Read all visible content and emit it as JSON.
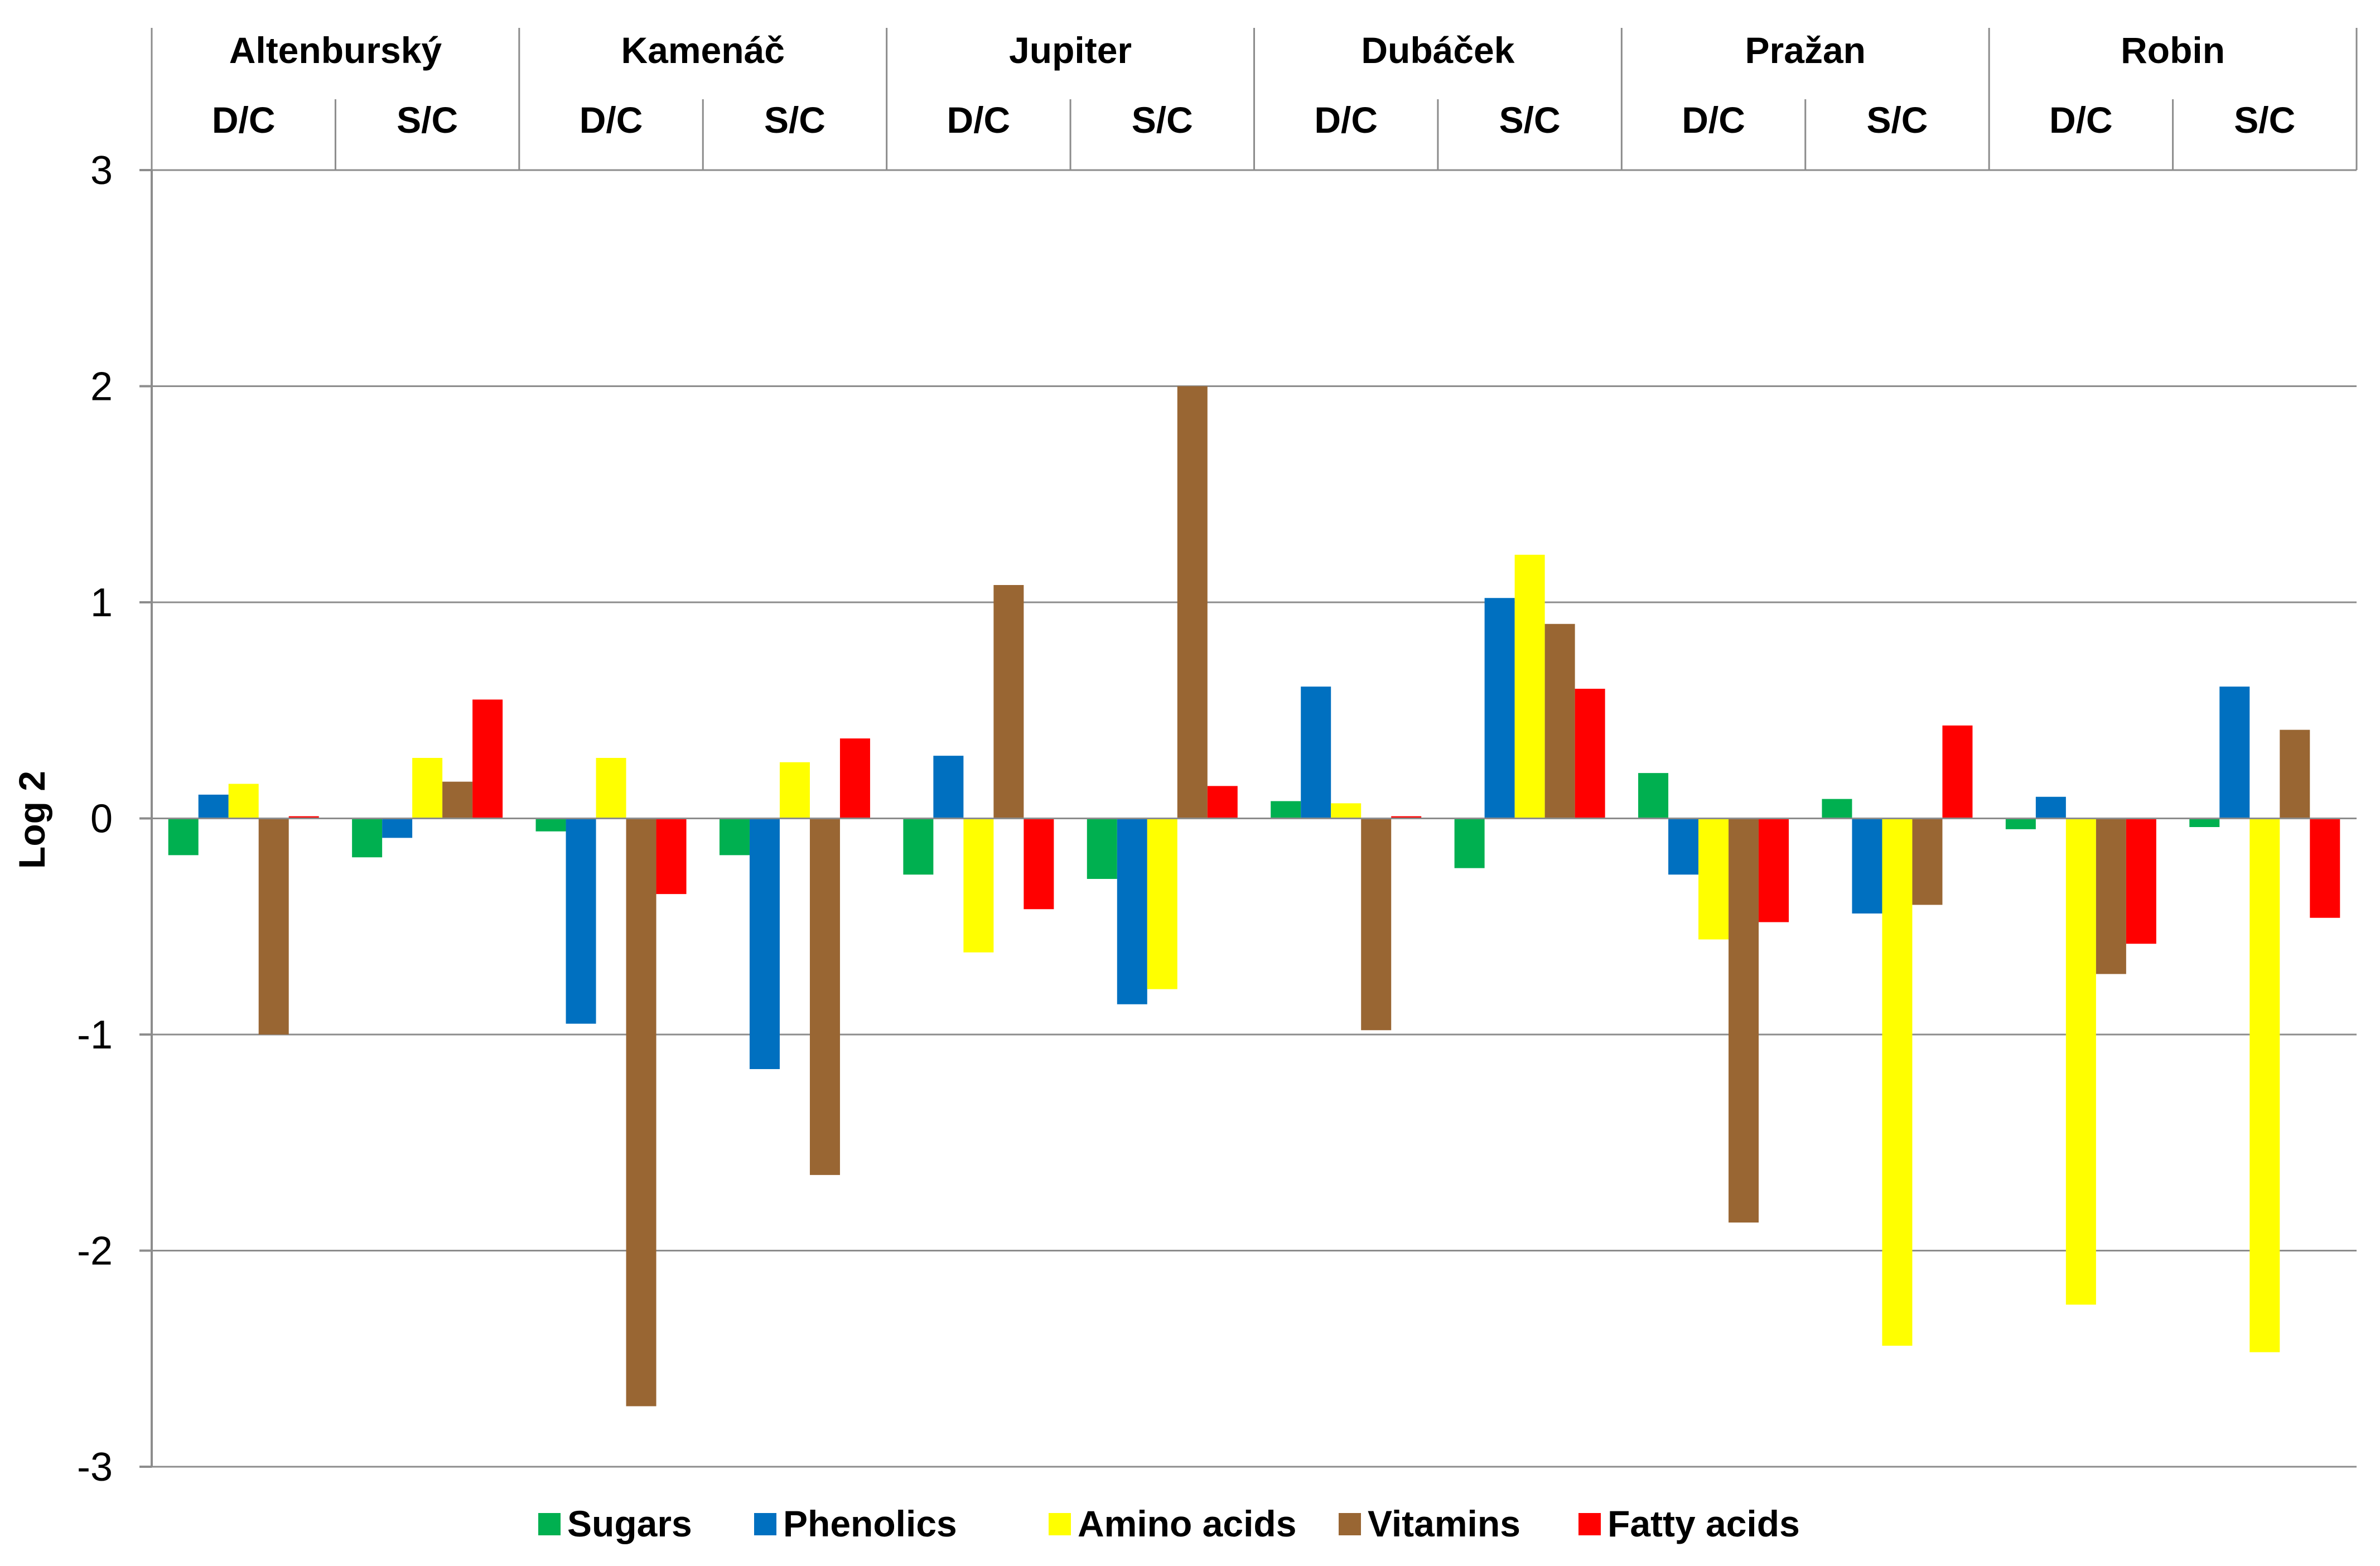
{
  "chart_data": {
    "type": "bar",
    "ylabel": "Log 2",
    "ylim": [
      -3,
      3
    ],
    "yticks": [
      "3",
      "2",
      "1",
      "0",
      "-1",
      "-2",
      "-3"
    ],
    "cultivars": [
      "Altenburský",
      "Kamenáč",
      "Jupiter",
      "Dubáček",
      "Pražan",
      "Robin"
    ],
    "conditions": [
      "D/C",
      "S/C"
    ],
    "series": [
      {
        "name": "Sugars",
        "color": "#00b050",
        "values": [
          -0.17,
          -0.18,
          -0.06,
          -0.17,
          -0.26,
          -0.28,
          0.08,
          -0.23,
          0.21,
          0.09,
          -0.05,
          -0.04
        ]
      },
      {
        "name": "Phenolics",
        "color": "#0070c0",
        "values": [
          0.11,
          -0.09,
          -0.95,
          -1.16,
          0.29,
          -0.86,
          0.61,
          1.02,
          -0.26,
          -0.44,
          0.1,
          0.61
        ]
      },
      {
        "name": "Amino acids",
        "color": "#ffff00",
        "values": [
          0.16,
          0.28,
          0.28,
          0.26,
          -0.62,
          -0.79,
          0.07,
          1.22,
          -0.56,
          -2.44,
          -2.25,
          -2.47
        ]
      },
      {
        "name": "Vitamins",
        "color": "#996633",
        "values": [
          -1.0,
          0.17,
          -2.72,
          -1.65,
          1.08,
          2.0,
          -0.98,
          0.9,
          -1.87,
          -0.4,
          -0.72,
          0.41
        ]
      },
      {
        "name": "Fatty acids",
        "color": "#ff0000",
        "values": [
          0.01,
          0.55,
          -0.35,
          0.37,
          -0.42,
          0.15,
          0.01,
          0.6,
          -0.48,
          0.43,
          -0.58,
          -0.46
        ]
      }
    ]
  }
}
